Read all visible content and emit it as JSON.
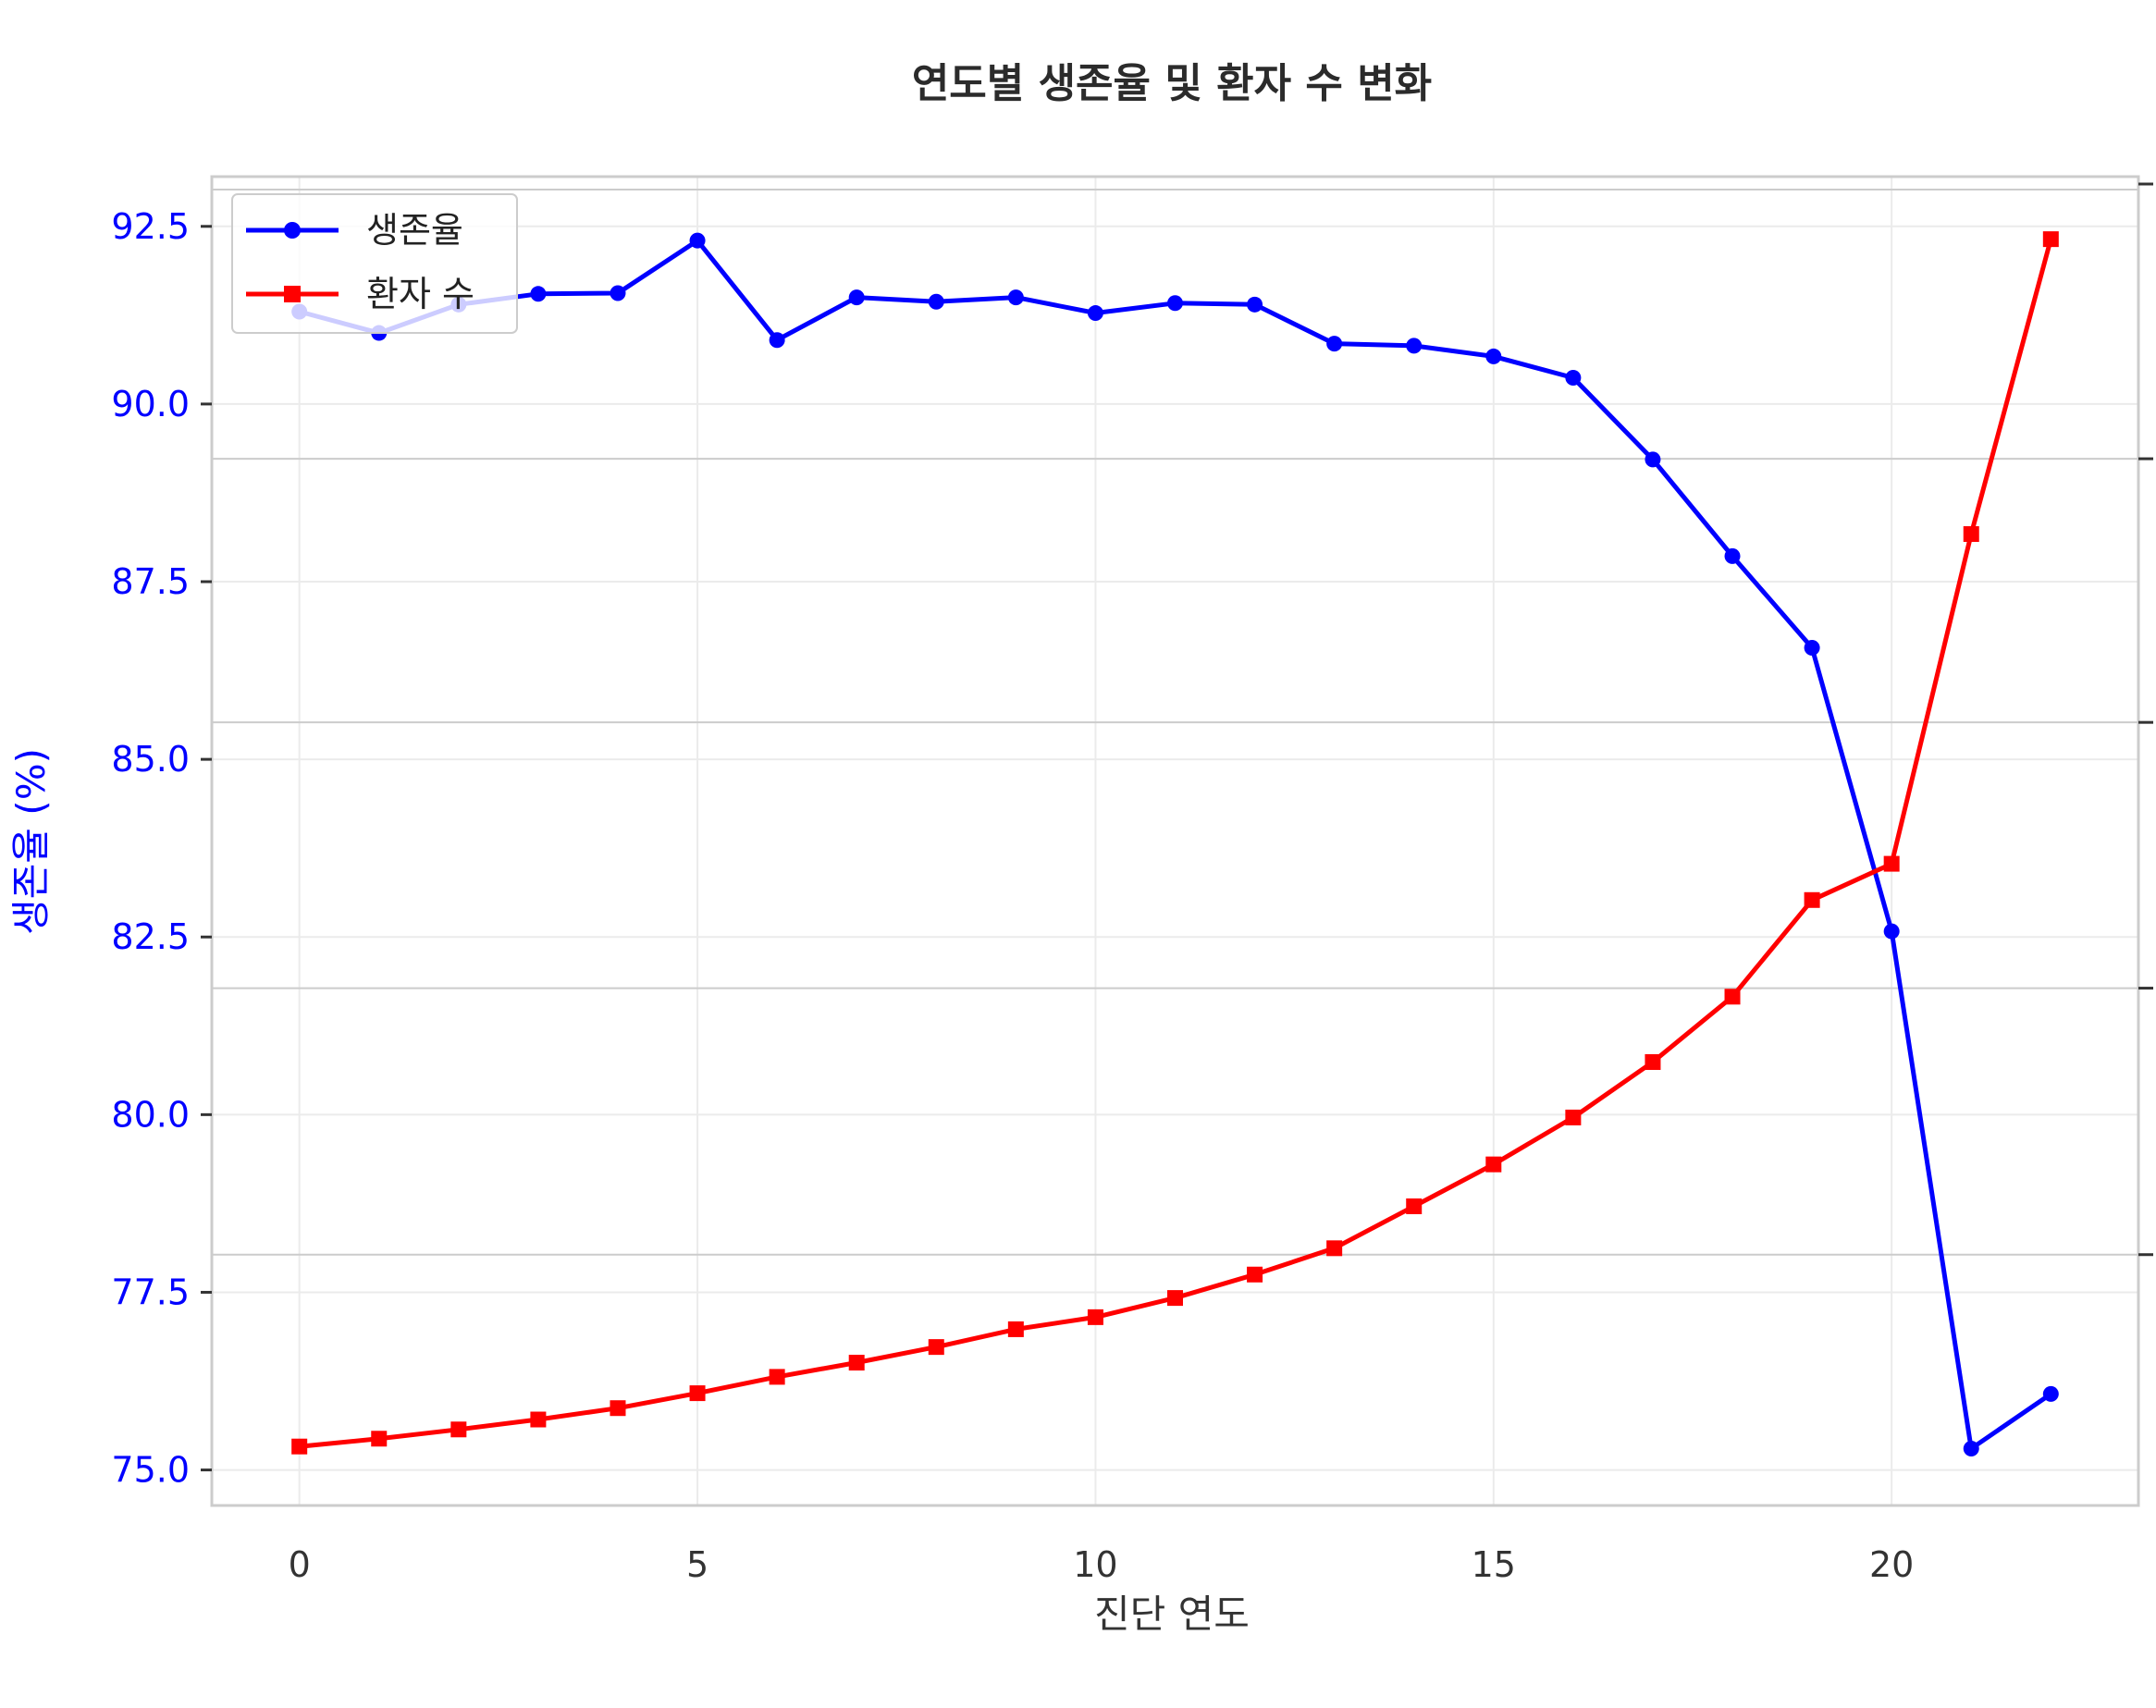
{
  "chart_data": {
    "type": "line",
    "title": "연도별 생존율 및 환자 수 변화",
    "xlabel": "진단 연도",
    "ylabel": "생존율 (%)",
    "x": [
      0,
      1,
      2,
      3,
      4,
      5,
      6,
      7,
      8,
      9,
      10,
      11,
      12,
      13,
      14,
      15,
      16,
      17,
      18,
      19,
      20,
      21,
      22
    ],
    "xticks": [
      "0",
      "5",
      "10",
      "15",
      "20"
    ],
    "xlim": [
      -1.1,
      23.1
    ],
    "ylim": [
      74.5,
      93.2
    ],
    "yticks": [
      "75.0",
      "77.5",
      "80.0",
      "82.5",
      "85.0",
      "87.5",
      "90.0",
      "92.5"
    ],
    "grid": true,
    "legend_position": "top-left",
    "secondary_axis": "right",
    "series": [
      {
        "name": "생존율",
        "color": "#0000ff",
        "marker": "circle",
        "axis": "left",
        "values": [
          91.3,
          91.0,
          91.4,
          91.55,
          91.56,
          92.3,
          90.9,
          91.5,
          91.44,
          91.5,
          91.28,
          91.42,
          91.4,
          90.85,
          90.82,
          90.67,
          90.37,
          89.22,
          87.86,
          86.57,
          82.58,
          75.3,
          76.07
        ]
      },
      {
        "name": "환자 수",
        "color": "#ff0000",
        "marker": "square",
        "axis": "right",
        "values": [
          75.33,
          75.44,
          75.57,
          75.71,
          75.87,
          76.08,
          76.31,
          76.51,
          76.73,
          76.98,
          77.15,
          77.42,
          77.75,
          78.12,
          78.71,
          79.3,
          79.96,
          80.74,
          81.66,
          83.02,
          83.53,
          88.17,
          92.32
        ]
      }
    ]
  }
}
